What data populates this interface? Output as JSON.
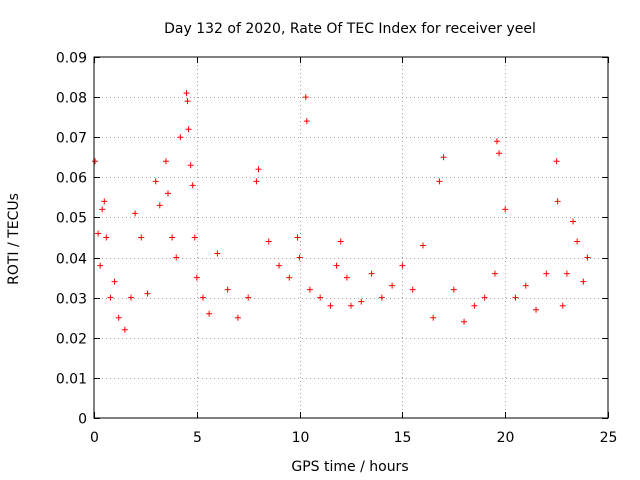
{
  "chart_data": {
    "type": "scatter",
    "title": "Day 132 of 2020, Rate Of TEC Index for receiver yeel",
    "xlabel": "GPS time / hours",
    "ylabel": "ROTI / TECUs",
    "xlim": [
      0,
      25
    ],
    "ylim": [
      0,
      0.09
    ],
    "x_ticks": [
      0,
      5,
      10,
      15,
      20,
      25
    ],
    "x_tick_labels": [
      "0",
      "5",
      "10",
      "15",
      "20",
      "25"
    ],
    "y_ticks": [
      0,
      0.01,
      0.02,
      0.03,
      0.04,
      0.05,
      0.06,
      0.07,
      0.08,
      0.09
    ],
    "y_tick_labels": [
      "0",
      "0.01",
      "0.02",
      "0.03",
      "0.04",
      "0.05",
      "0.06",
      "0.07",
      "0.08",
      "0.09"
    ],
    "grid": true,
    "marker": "+",
    "marker_color": "#ff0000",
    "series": [
      {
        "name": "ROTI",
        "x": [
          0.05,
          0.2,
          0.3,
          0.4,
          0.5,
          0.6,
          0.8,
          1.0,
          1.2,
          1.5,
          1.8,
          2.0,
          2.3,
          2.6,
          3.0,
          3.2,
          3.5,
          3.6,
          3.8,
          4.0,
          4.2,
          4.5,
          4.55,
          4.6,
          4.7,
          4.8,
          4.9,
          5.0,
          5.3,
          5.6,
          6.0,
          6.5,
          7.0,
          7.5,
          7.9,
          8.0,
          8.5,
          9.0,
          9.5,
          9.9,
          10.0,
          10.3,
          10.35,
          10.5,
          11.0,
          11.5,
          11.8,
          12.0,
          12.3,
          12.5,
          13.0,
          13.5,
          14.0,
          14.5,
          15.0,
          15.5,
          16.0,
          16.5,
          16.8,
          17.0,
          17.5,
          18.0,
          18.5,
          19.0,
          19.5,
          19.6,
          19.7,
          20.0,
          20.5,
          21.0,
          21.5,
          22.0,
          22.5,
          22.55,
          22.8,
          23.0,
          23.3,
          23.5,
          23.8,
          24.0
        ],
        "y": [
          0.064,
          0.046,
          0.038,
          0.052,
          0.054,
          0.045,
          0.03,
          0.034,
          0.025,
          0.022,
          0.03,
          0.051,
          0.045,
          0.031,
          0.059,
          0.053,
          0.064,
          0.056,
          0.045,
          0.04,
          0.07,
          0.081,
          0.079,
          0.072,
          0.063,
          0.058,
          0.045,
          0.035,
          0.03,
          0.026,
          0.041,
          0.032,
          0.025,
          0.03,
          0.059,
          0.062,
          0.044,
          0.038,
          0.035,
          0.045,
          0.04,
          0.08,
          0.074,
          0.032,
          0.03,
          0.028,
          0.038,
          0.044,
          0.035,
          0.028,
          0.029,
          0.036,
          0.03,
          0.033,
          0.038,
          0.032,
          0.043,
          0.025,
          0.059,
          0.065,
          0.032,
          0.024,
          0.028,
          0.03,
          0.036,
          0.069,
          0.066,
          0.052,
          0.03,
          0.033,
          0.027,
          0.036,
          0.064,
          0.054,
          0.028,
          0.036,
          0.049,
          0.044,
          0.034,
          0.04
        ]
      }
    ]
  }
}
